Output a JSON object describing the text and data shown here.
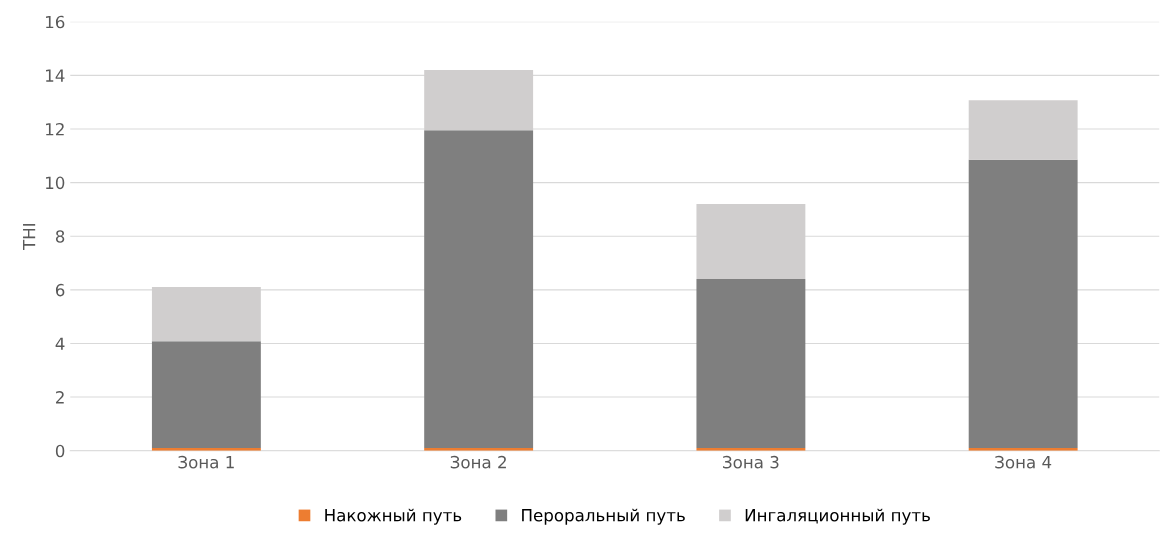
{
  "chart_data": {
    "type": "bar",
    "stacked": true,
    "ylabel": "THI",
    "categories": [
      "Зона 1",
      "Зона 2",
      "Зона 3",
      "Зона 4"
    ],
    "series": [
      {
        "name": "Накожный путь",
        "color": "#ed7d31",
        "values": [
          0.1,
          0.1,
          0.1,
          0.1
        ]
      },
      {
        "name": "Пероральный путь",
        "color": "#7f7f7f",
        "values": [
          3.98,
          11.85,
          6.3,
          10.75
        ]
      },
      {
        "name": "Ингаляционный путь",
        "color": "#d0cece",
        "values": [
          2.03,
          2.25,
          2.8,
          2.22
        ]
      }
    ],
    "ylim": [
      0,
      16
    ],
    "yticks": [
      0,
      2,
      4,
      6,
      8,
      10,
      12,
      14,
      16
    ],
    "grid": "y",
    "legend": "bottom"
  }
}
